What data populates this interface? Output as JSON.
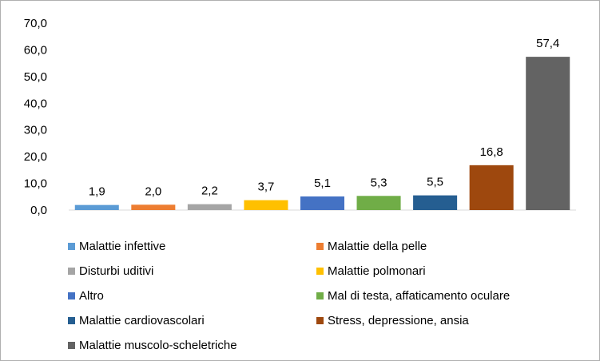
{
  "chart_data": {
    "type": "bar",
    "categories": [
      "Malattie infettive",
      "Malattie della pelle",
      "Disturbi uditivi",
      "Malattie polmonari",
      "Altro",
      "Mal di testa, affaticamento oculare",
      "Malattie cardiovascolari",
      "Stress, depressione, ansia",
      "Malattie muscolo-scheletriche"
    ],
    "values": [
      1.9,
      2.0,
      2.2,
      3.7,
      5.1,
      5.3,
      5.5,
      16.8,
      57.4
    ],
    "value_labels": [
      "1,9",
      "2,0",
      "2,2",
      "3,7",
      "5,1",
      "5,3",
      "5,5",
      "16,8",
      "57,4"
    ],
    "colors": [
      "#5b9bd5",
      "#ed7d31",
      "#a5a5a5",
      "#ffc000",
      "#4472c4",
      "#70ad47",
      "#255e91",
      "#9e480e",
      "#636363"
    ],
    "ylim": [
      0,
      70
    ],
    "yticks": [
      0,
      10,
      20,
      30,
      40,
      50,
      60,
      70
    ],
    "ytick_labels": [
      "0,0",
      "10,0",
      "20,0",
      "30,0",
      "40,0",
      "50,0",
      "60,0",
      "70,0"
    ],
    "grid": false,
    "legend_position": "bottom",
    "title": "",
    "xlabel": "",
    "ylabel": ""
  }
}
